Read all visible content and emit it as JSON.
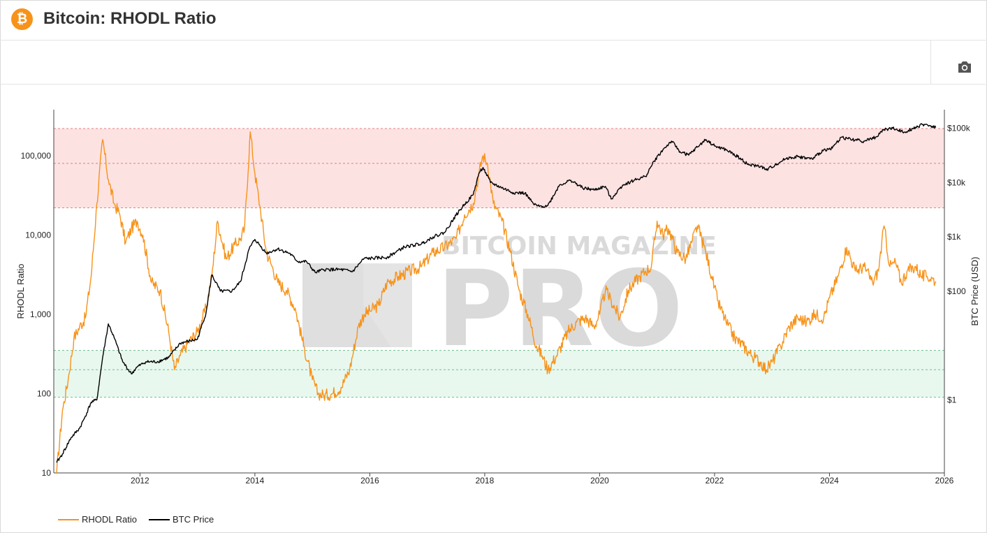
{
  "header": {
    "title": "Bitcoin: RHODL Ratio",
    "logo_symbol": "₿"
  },
  "toolbar": {
    "icons": [
      "camera-icon"
    ]
  },
  "watermark": {
    "brand": "BITCOIN MAGAZINE",
    "product": "PRO"
  },
  "colors": {
    "rhodl": "#f7931a",
    "price": "#000000",
    "red_zone": "#fde2e2",
    "green_zone": "#e8f8ef",
    "red_line": "#e08080",
    "green_line": "#6fbf8a"
  },
  "chart_data": {
    "type": "line",
    "title": "Bitcoin: RHODL Ratio",
    "xlabel": "",
    "ylabel_left": "RHODL Ratio",
    "ylabel_right": "BTC Price (USD)",
    "x_range": [
      2010.5,
      2026.0
    ],
    "y_left_log_range": [
      10,
      380000
    ],
    "y_right_log_range": [
      0.045,
      220000
    ],
    "x_ticks": [
      2012,
      2014,
      2016,
      2018,
      2020,
      2022,
      2024,
      2026
    ],
    "y_left_ticks": [
      {
        "value": 10,
        "label": "10"
      },
      {
        "value": 100,
        "label": "100"
      },
      {
        "value": 1000,
        "label": "1,000"
      },
      {
        "value": 10000,
        "label": "10,000"
      },
      {
        "value": 100000,
        "label": "100,000"
      }
    ],
    "y_right_ticks": [
      {
        "value": 1,
        "label": "$1"
      },
      {
        "value": 100,
        "label": "$100"
      },
      {
        "value": 1000,
        "label": "$1k"
      },
      {
        "value": 10000,
        "label": "$10k"
      },
      {
        "value": 100000,
        "label": "$100k"
      }
    ],
    "zones": {
      "overheated": {
        "low": 22000,
        "mid": 80000,
        "high": 220000
      },
      "undervalued": {
        "low": 90,
        "mid": 200,
        "high": 350
      }
    },
    "legend_position": "bottom-left",
    "series": [
      {
        "name": "RHODL Ratio",
        "x": [
          2010.55,
          2010.65,
          2010.75,
          2010.85,
          2010.95,
          2011.05,
          2011.15,
          2011.25,
          2011.35,
          2011.45,
          2011.55,
          2011.65,
          2011.75,
          2011.85,
          2011.95,
          2012.05,
          2012.2,
          2012.35,
          2012.5,
          2012.6,
          2012.7,
          2012.85,
          2013.0,
          2013.15,
          2013.25,
          2013.35,
          2013.5,
          2013.65,
          2013.75,
          2013.82,
          2013.92,
          2014.0,
          2014.1,
          2014.2,
          2014.3,
          2014.4,
          2014.55,
          2014.7,
          2014.85,
          2015.0,
          2015.1,
          2015.2,
          2015.35,
          2015.5,
          2015.65,
          2015.8,
          2015.9,
          2016.0,
          2016.15,
          2016.3,
          2016.5,
          2016.7,
          2016.9,
          2017.1,
          2017.3,
          2017.5,
          2017.65,
          2017.8,
          2017.9,
          2017.97,
          2018.05,
          2018.15,
          2018.3,
          2018.45,
          2018.6,
          2018.75,
          2018.9,
          2019.0,
          2019.1,
          2019.25,
          2019.45,
          2019.6,
          2019.75,
          2019.9,
          2020.0,
          2020.1,
          2020.2,
          2020.35,
          2020.5,
          2020.6,
          2020.7,
          2020.8,
          2020.9,
          2021.0,
          2021.1,
          2021.2,
          2021.35,
          2021.5,
          2021.6,
          2021.7,
          2021.85,
          2021.95,
          2022.05,
          2022.2,
          2022.35,
          2022.5,
          2022.65,
          2022.8,
          2022.9,
          2023.0,
          2023.15,
          2023.3,
          2023.45,
          2023.6,
          2023.75,
          2023.9,
          2024.0,
          2024.15,
          2024.3,
          2024.45,
          2024.6,
          2024.75,
          2024.85,
          2024.95,
          2025.05,
          2025.15,
          2025.25,
          2025.35,
          2025.5,
          2025.6,
          2025.7,
          2025.8,
          2025.85
        ],
        "values": [
          10,
          60,
          150,
          500,
          700,
          900,
          3000,
          25000,
          160000,
          50000,
          25000,
          18000,
          8000,
          12000,
          15000,
          10000,
          2500,
          2000,
          600,
          200,
          300,
          450,
          600,
          1200,
          3000,
          15000,
          5000,
          7500,
          9000,
          12000,
          200000,
          60000,
          20000,
          6000,
          4000,
          2500,
          2000,
          1200,
          400,
          150,
          100,
          95,
          100,
          120,
          200,
          700,
          1000,
          1100,
          1300,
          2500,
          3000,
          3500,
          4000,
          6000,
          7000,
          9000,
          18000,
          25000,
          60000,
          100000,
          80000,
          25000,
          15000,
          6000,
          2000,
          1000,
          400,
          300,
          200,
          300,
          600,
          800,
          900,
          700,
          1000,
          2000,
          1500,
          900,
          2000,
          2500,
          3000,
          3500,
          4000,
          15000,
          10000,
          12000,
          6000,
          5000,
          8000,
          13000,
          6000,
          3000,
          1500,
          800,
          500,
          400,
          300,
          250,
          200,
          250,
          400,
          700,
          900,
          800,
          1000,
          900,
          1600,
          3000,
          7000,
          3500,
          4000,
          2500,
          3500,
          13000,
          4000,
          4500,
          2500,
          3500,
          4000,
          3000,
          3000,
          2800,
          2600
        ]
      },
      {
        "name": "BTC Price",
        "x": [
          2010.55,
          2010.65,
          2010.8,
          2010.95,
          2011.05,
          2011.15,
          2011.25,
          2011.35,
          2011.45,
          2011.55,
          2011.7,
          2011.85,
          2011.95,
          2012.1,
          2012.3,
          2012.5,
          2012.7,
          2012.85,
          2013.0,
          2013.15,
          2013.25,
          2013.4,
          2013.6,
          2013.75,
          2013.9,
          2014.0,
          2014.2,
          2014.4,
          2014.6,
          2014.75,
          2014.9,
          2015.05,
          2015.2,
          2015.5,
          2015.7,
          2015.9,
          2016.0,
          2016.3,
          2016.6,
          2016.9,
          2017.1,
          2017.3,
          2017.5,
          2017.65,
          2017.8,
          2017.9,
          2017.97,
          2018.1,
          2018.3,
          2018.5,
          2018.7,
          2018.85,
          2018.95,
          2019.1,
          2019.3,
          2019.5,
          2019.7,
          2019.9,
          2020.1,
          2020.2,
          2020.4,
          2020.6,
          2020.8,
          2020.95,
          2021.1,
          2021.25,
          2021.4,
          2021.55,
          2021.7,
          2021.85,
          2022.0,
          2022.2,
          2022.4,
          2022.6,
          2022.8,
          2022.9,
          2023.05,
          2023.25,
          2023.45,
          2023.7,
          2023.9,
          2024.05,
          2024.2,
          2024.4,
          2024.6,
          2024.8,
          2024.95,
          2025.1,
          2025.3,
          2025.5,
          2025.65,
          2025.75,
          2025.85
        ],
        "values": [
          0.07,
          0.1,
          0.2,
          0.3,
          0.5,
          0.9,
          1,
          6,
          25,
          14,
          5,
          3,
          4,
          5,
          5,
          6,
          11,
          12,
          13,
          40,
          200,
          100,
          100,
          150,
          600,
          900,
          500,
          600,
          500,
          350,
          350,
          220,
          250,
          250,
          230,
          400,
          400,
          420,
          650,
          750,
          1000,
          1200,
          2500,
          4000,
          6000,
          15000,
          19000,
          10000,
          8000,
          6500,
          6400,
          4000,
          3600,
          3800,
          9000,
          11000,
          8000,
          7300,
          8500,
          5000,
          9000,
          11000,
          13000,
          25000,
          40000,
          58000,
          37000,
          32000,
          45000,
          62000,
          47000,
          40000,
          30000,
          21000,
          20000,
          17000,
          21000,
          28000,
          30000,
          27000,
          40000,
          43000,
          68000,
          62000,
          58000,
          68000,
          95000,
          100000,
          85000,
          105000,
          118000,
          112000,
          103000
        ]
      }
    ]
  }
}
